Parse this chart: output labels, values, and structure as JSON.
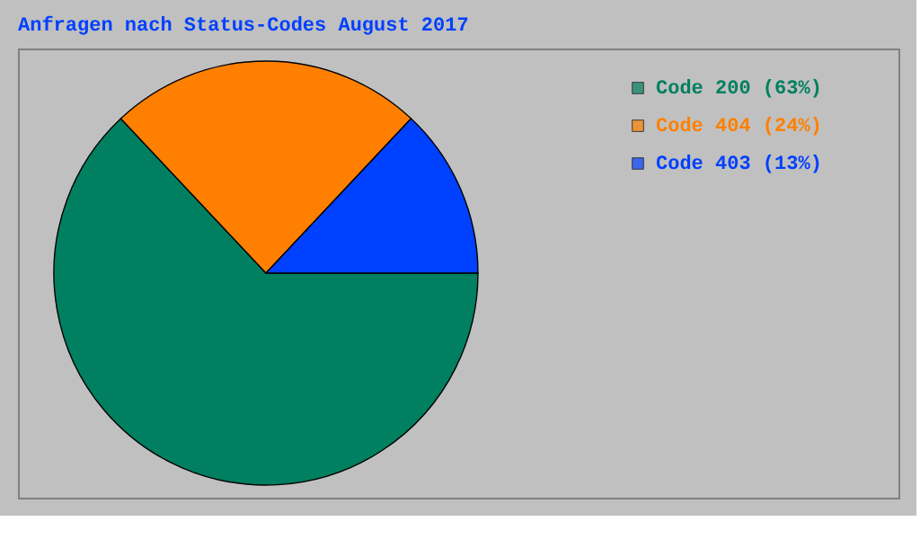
{
  "chart_data": {
    "type": "pie",
    "title": "Anfragen nach Status-Codes August 2017",
    "categories": [
      "Code 200",
      "Code 404",
      "Code 403"
    ],
    "values": [
      63,
      24,
      13
    ],
    "value_labels": [
      "(63%)",
      "(24%)",
      "(13%)"
    ],
    "colors": [
      "#008060",
      "#ff8000",
      "#0040ff"
    ],
    "legend": "top right"
  }
}
